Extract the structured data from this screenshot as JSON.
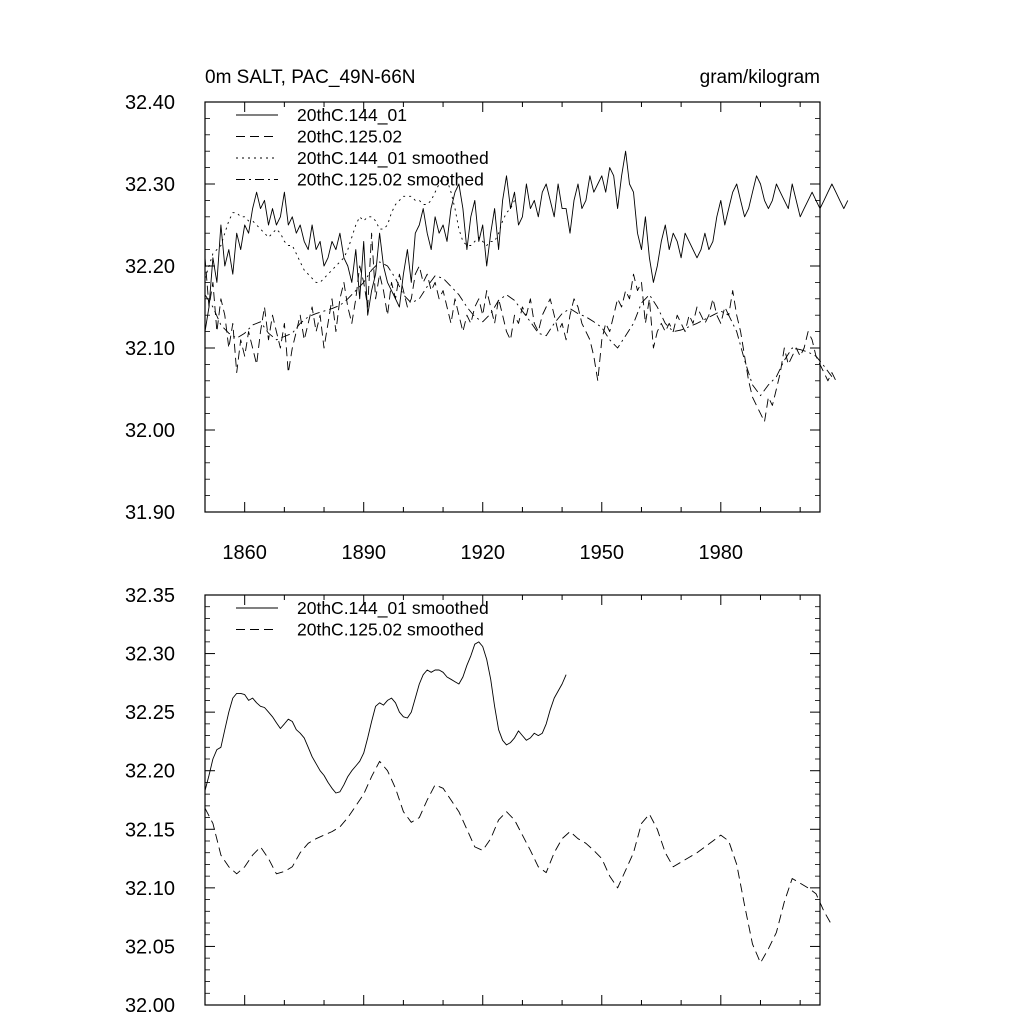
{
  "chart_data": [
    {
      "type": "line",
      "title": "0m SALT, PAC_49N-66N",
      "units": "gram/kilogram",
      "xlim": [
        1850,
        2005
      ],
      "ylim": [
        31.9,
        32.4
      ],
      "x_ticks": [
        1860,
        1890,
        1920,
        1950,
        1980
      ],
      "x_tick_labels": [
        "1860",
        "1890",
        "1920",
        "1950",
        "1980"
      ],
      "y_ticks": [
        31.9,
        32.0,
        32.1,
        32.2,
        32.3,
        32.4
      ],
      "y_tick_labels": [
        "31.90",
        "32.00",
        "32.10",
        "32.20",
        "32.30",
        "32.40"
      ],
      "legend_position": "top-left",
      "series": [
        {
          "name": "20thC.144_01",
          "style": "solid",
          "x_start": 1850,
          "x_step": 1,
          "values": [
            32.12,
            32.15,
            32.21,
            32.18,
            32.25,
            32.2,
            32.22,
            32.19,
            32.24,
            32.22,
            32.25,
            32.24,
            32.27,
            32.29,
            32.27,
            32.28,
            32.25,
            32.27,
            32.25,
            32.26,
            32.29,
            32.25,
            32.26,
            32.24,
            32.25,
            32.23,
            32.22,
            32.25,
            32.22,
            32.23,
            32.2,
            32.21,
            32.23,
            32.22,
            32.24,
            32.21,
            32.2,
            32.18,
            32.22,
            32.16,
            32.23,
            32.14,
            32.17,
            32.19,
            32.24,
            32.2,
            32.18,
            32.17,
            32.16,
            32.15,
            32.19,
            32.22,
            32.18,
            32.24,
            32.25,
            32.27,
            32.24,
            32.22,
            32.26,
            32.24,
            32.25,
            32.23,
            32.27,
            32.29,
            32.3,
            32.27,
            32.22,
            32.26,
            32.28,
            32.23,
            32.25,
            32.2,
            32.24,
            32.27,
            32.22,
            32.28,
            32.31,
            32.27,
            32.29,
            32.25,
            32.26,
            32.3,
            32.27,
            32.28,
            32.26,
            32.29,
            32.3,
            32.28,
            32.26,
            32.3,
            32.27,
            32.27,
            32.24,
            32.28,
            32.3,
            32.27,
            32.28,
            32.31,
            32.29,
            32.3,
            32.31,
            32.29,
            32.32,
            32.31,
            32.27,
            32.31,
            32.34,
            32.3,
            32.29,
            32.24,
            32.22,
            32.26,
            32.21,
            32.18,
            32.2,
            32.23,
            32.25,
            32.22,
            32.24,
            32.23,
            32.21,
            32.24,
            32.23,
            32.22,
            32.21,
            32.22,
            32.24,
            32.22,
            32.23,
            32.26,
            32.28,
            32.25,
            32.27,
            32.29,
            32.3,
            32.28,
            32.26,
            32.27,
            32.29,
            32.31,
            32.3,
            32.28,
            32.27,
            32.28,
            32.3,
            32.29,
            32.28,
            32.27,
            32.3,
            32.28,
            32.26,
            32.27,
            32.28,
            32.29,
            32.28,
            32.27,
            32.28,
            32.29,
            32.3,
            32.29,
            32.28,
            32.27,
            32.28
          ]
        },
        {
          "name": "20thC.125.02",
          "style": "dashed",
          "x_start": 1850,
          "x_step": 1,
          "values": [
            32.21,
            32.15,
            32.18,
            32.12,
            32.16,
            32.14,
            32.1,
            32.13,
            32.07,
            32.11,
            32.09,
            32.12,
            32.1,
            32.08,
            32.12,
            32.15,
            32.11,
            32.14,
            32.12,
            32.1,
            32.13,
            32.07,
            32.1,
            32.12,
            32.14,
            32.11,
            32.13,
            32.15,
            32.12,
            32.14,
            32.1,
            32.13,
            32.16,
            32.12,
            32.16,
            32.18,
            32.15,
            32.13,
            32.16,
            32.2,
            32.18,
            32.15,
            32.24,
            32.16,
            32.19,
            32.17,
            32.14,
            32.18,
            32.16,
            32.19,
            32.17,
            32.15,
            32.16,
            32.19,
            32.2,
            32.18,
            32.19,
            32.17,
            32.18,
            32.16,
            32.17,
            32.15,
            32.13,
            32.16,
            32.14,
            32.12,
            32.14,
            32.13,
            32.15,
            32.16,
            32.14,
            32.17,
            32.15,
            32.13,
            32.16,
            32.14,
            32.12,
            32.11,
            32.14,
            32.13,
            32.15,
            32.14,
            32.16,
            32.13,
            32.12,
            32.14,
            32.15,
            32.16,
            32.14,
            32.12,
            32.13,
            32.11,
            32.14,
            32.16,
            32.15,
            32.13,
            32.12,
            32.11,
            32.09,
            32.06,
            32.11,
            32.13,
            32.12,
            32.14,
            32.16,
            32.15,
            32.17,
            32.16,
            32.19,
            32.17,
            32.18,
            32.13,
            32.16,
            32.1,
            32.12,
            32.13,
            32.12,
            32.13,
            32.12,
            32.14,
            32.13,
            32.12,
            32.14,
            32.13,
            32.15,
            32.14,
            32.13,
            32.14,
            32.16,
            32.14,
            32.13,
            32.15,
            32.14,
            32.17,
            32.14,
            32.12,
            32.09,
            32.06,
            32.04,
            32.03,
            32.02,
            32.01,
            32.04,
            32.03,
            32.05,
            32.07,
            32.1,
            32.08,
            32.09,
            32.1,
            32.09,
            32.1,
            32.12,
            32.11,
            32.09,
            32.08,
            32.07,
            32.06,
            32.07,
            32.06
          ]
        },
        {
          "name": "20thC.144_01 smoothed",
          "style": "dotted",
          "x_start": 1850,
          "x_step": 1,
          "values": [
            32.185,
            32.2,
            32.215,
            32.22,
            32.225,
            32.24,
            32.255,
            32.265,
            32.265,
            32.26,
            32.26,
            32.255,
            32.255,
            32.25,
            32.245,
            32.24,
            32.235,
            32.24,
            32.245,
            32.24,
            32.23,
            32.225,
            32.225,
            32.215,
            32.205,
            32.195,
            32.19,
            32.185,
            32.18,
            32.18,
            32.185,
            32.19,
            32.195,
            32.2,
            32.205,
            32.21,
            32.22,
            32.235,
            32.25,
            32.26,
            32.255,
            32.26,
            32.26,
            32.255,
            32.245,
            32.245,
            32.25,
            32.265,
            32.275,
            32.28,
            32.285,
            32.285,
            32.285,
            32.28,
            32.28,
            32.275,
            32.275,
            32.28,
            32.29,
            32.3,
            32.31,
            32.305,
            32.29,
            32.27,
            32.245,
            32.23,
            32.225,
            32.225,
            32.23,
            32.235,
            32.23,
            32.225,
            32.23,
            32.23,
            32.24,
            32.255,
            32.265,
            32.27,
            32.28
          ]
        },
        {
          "name": "20thC.125.02 smoothed",
          "style": "dashdot",
          "x_start": 1850,
          "x_step": 2,
          "values": [
            32.165,
            32.15,
            32.128,
            32.118,
            32.112,
            32.118,
            32.128,
            32.132,
            32.118,
            32.11,
            32.114,
            32.118,
            32.13,
            32.138,
            32.142,
            32.145,
            32.148,
            32.152,
            32.16,
            32.17,
            32.18,
            32.195,
            32.205,
            32.2,
            32.185,
            32.165,
            32.155,
            32.16,
            32.175,
            32.188,
            32.185,
            32.175,
            32.165,
            32.15,
            32.138,
            32.132,
            32.142,
            32.158,
            32.165,
            32.158,
            32.145,
            32.132,
            32.118,
            32.115,
            32.13,
            32.142,
            32.148,
            32.142,
            32.138,
            32.132,
            32.125,
            32.11,
            32.1,
            32.115,
            32.13,
            32.155,
            32.165,
            32.15,
            32.13,
            32.12,
            32.122,
            32.126,
            32.13,
            32.135,
            32.14,
            32.145,
            32.14,
            32.12,
            32.085,
            32.055,
            32.042,
            32.055,
            32.065,
            32.085,
            32.1,
            32.098,
            32.095,
            32.09,
            32.078,
            32.065
          ]
        }
      ]
    },
    {
      "type": "line",
      "xlim": [
        1850,
        2005
      ],
      "ylim": [
        32.0,
        32.35
      ],
      "x_ticks": [
        1860,
        1890,
        1920,
        1950,
        1980
      ],
      "y_ticks": [
        32.0,
        32.05,
        32.1,
        32.15,
        32.2,
        32.25,
        32.3,
        32.35
      ],
      "y_tick_labels": [
        "32.00",
        "32.05",
        "32.10",
        "32.15",
        "32.20",
        "32.25",
        "32.30",
        "32.35"
      ],
      "legend_position": "top-left",
      "series": [
        {
          "name": "20thC.144_01 smoothed",
          "style": "solid",
          "x_start": 1850,
          "x_step": 1,
          "values": [
            32.183,
            32.196,
            32.21,
            32.218,
            32.22,
            32.235,
            32.25,
            32.262,
            32.266,
            32.266,
            32.265,
            32.26,
            32.262,
            32.258,
            32.255,
            32.254,
            32.25,
            32.246,
            32.241,
            32.236,
            32.24,
            32.244,
            32.242,
            32.235,
            32.232,
            32.228,
            32.22,
            32.212,
            32.206,
            32.2,
            32.196,
            32.19,
            32.185,
            32.181,
            32.182,
            32.188,
            32.195,
            32.2,
            32.204,
            32.208,
            32.215,
            32.228,
            32.242,
            32.255,
            32.258,
            32.256,
            32.26,
            32.262,
            32.258,
            32.25,
            32.246,
            32.245,
            32.25,
            32.262,
            32.274,
            32.282,
            32.286,
            32.284,
            32.286,
            32.286,
            32.284,
            32.28,
            32.278,
            32.276,
            32.274,
            32.28,
            32.29,
            32.298,
            32.308,
            32.31,
            32.306,
            32.295,
            32.278,
            32.255,
            32.235,
            32.226,
            32.222,
            32.224,
            32.228,
            32.234,
            32.23,
            32.226,
            32.228,
            32.232,
            32.23,
            32.232,
            32.24,
            32.252,
            32.262,
            32.268,
            32.274,
            32.282
          ]
        },
        {
          "name": "20thC.125.02 smoothed",
          "style": "dashed",
          "x_start": 1850,
          "x_step": 2,
          "values": [
            32.168,
            32.155,
            32.128,
            32.118,
            32.112,
            32.118,
            32.128,
            32.135,
            32.125,
            32.112,
            32.114,
            32.118,
            32.13,
            32.138,
            32.142,
            32.145,
            32.148,
            32.152,
            32.16,
            32.17,
            32.18,
            32.195,
            32.208,
            32.2,
            32.185,
            32.165,
            32.156,
            32.16,
            32.175,
            32.188,
            32.185,
            32.175,
            32.165,
            32.15,
            32.135,
            32.132,
            32.142,
            32.158,
            32.165,
            32.158,
            32.145,
            32.132,
            32.118,
            32.113,
            32.13,
            32.142,
            32.148,
            32.142,
            32.138,
            32.132,
            32.125,
            32.11,
            32.1,
            32.115,
            32.13,
            32.155,
            32.163,
            32.15,
            32.13,
            32.118,
            32.122,
            32.126,
            32.13,
            32.135,
            32.14,
            32.145,
            32.14,
            32.12,
            32.085,
            32.052,
            32.036,
            32.048,
            32.062,
            32.088,
            32.108,
            32.104,
            32.1,
            32.095,
            32.08,
            32.068
          ]
        }
      ]
    }
  ]
}
